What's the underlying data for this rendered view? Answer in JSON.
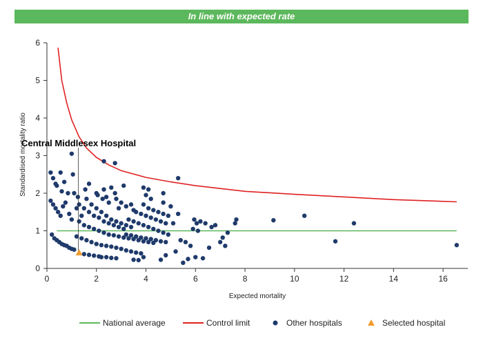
{
  "banner": {
    "text": "In line with expected rate",
    "color": "#5cb85c"
  },
  "legend": {
    "national_average": "National average",
    "control_limit": "Control limit",
    "other_hospitals": "Other hospitals",
    "selected_hospital": "Selected hospital"
  },
  "colors": {
    "national_average": "#5cb85c",
    "control_limit": "#e02020",
    "other_hospitals": "#1f3a6b",
    "selected_hospital": "#f29b30"
  },
  "chart_data": {
    "type": "scatter",
    "xlabel": "Expected mortality",
    "ylabel": "Standardised mortality ratio",
    "xlim": [
      0,
      17
    ],
    "ylim": [
      0,
      6
    ],
    "x_ticks": [
      0,
      2,
      4,
      6,
      8,
      10,
      12,
      14,
      16
    ],
    "y_ticks": [
      0,
      1,
      2,
      3,
      4,
      5,
      6
    ],
    "annotation": {
      "text": "Central Middlesex Hospital",
      "x": 1.3,
      "y": 0.42
    },
    "national_average": 1,
    "control_limit": [
      [
        0.45,
        5.87
      ],
      [
        0.6,
        5.0
      ],
      [
        0.8,
        4.4
      ],
      [
        1.0,
        3.95
      ],
      [
        1.3,
        3.5
      ],
      [
        1.6,
        3.2
      ],
      [
        2.0,
        2.95
      ],
      [
        2.5,
        2.75
      ],
      [
        3.0,
        2.6
      ],
      [
        4.0,
        2.42
      ],
      [
        5.0,
        2.3
      ],
      [
        6.0,
        2.2
      ],
      [
        8.0,
        2.05
      ],
      [
        10.0,
        1.97
      ],
      [
        12.0,
        1.9
      ],
      [
        14.0,
        1.83
      ],
      [
        16.55,
        1.77
      ]
    ],
    "series": [
      {
        "name": "Other hospitals",
        "points": [
          [
            0.15,
            2.55
          ],
          [
            0.25,
            2.4
          ],
          [
            0.35,
            2.25
          ],
          [
            0.55,
            2.55
          ],
          [
            0.7,
            2.3
          ],
          [
            0.85,
            2.0
          ],
          [
            1.0,
            3.05
          ],
          [
            1.05,
            2.5
          ],
          [
            0.6,
            2.05
          ],
          [
            0.4,
            2.2
          ],
          [
            0.15,
            1.8
          ],
          [
            0.25,
            1.7
          ],
          [
            0.35,
            1.6
          ],
          [
            0.45,
            1.5
          ],
          [
            0.55,
            1.4
          ],
          [
            0.65,
            1.65
          ],
          [
            0.9,
            1.45
          ],
          [
            1.0,
            1.3
          ],
          [
            1.2,
            1.6
          ],
          [
            1.4,
            1.4
          ],
          [
            1.6,
            1.85
          ],
          [
            1.8,
            1.7
          ],
          [
            2.0,
            1.6
          ],
          [
            2.2,
            1.5
          ],
          [
            2.4,
            1.4
          ],
          [
            2.6,
            1.3
          ],
          [
            2.8,
            1.25
          ],
          [
            3.0,
            1.2
          ],
          [
            3.2,
            1.15
          ],
          [
            3.4,
            1.1
          ],
          [
            1.3,
            1.7
          ],
          [
            1.5,
            1.6
          ],
          [
            1.7,
            1.5
          ],
          [
            1.9,
            1.4
          ],
          [
            2.1,
            1.35
          ],
          [
            2.3,
            1.25
          ],
          [
            2.5,
            1.2
          ],
          [
            2.7,
            1.15
          ],
          [
            2.9,
            1.1
          ],
          [
            3.1,
            1.05
          ],
          [
            0.2,
            0.9
          ],
          [
            0.3,
            0.8
          ],
          [
            0.4,
            0.75
          ],
          [
            0.5,
            0.7
          ],
          [
            0.6,
            0.65
          ],
          [
            0.7,
            0.62
          ],
          [
            0.8,
            0.6
          ],
          [
            0.9,
            0.55
          ],
          [
            1.0,
            0.52
          ],
          [
            1.1,
            0.5
          ],
          [
            1.2,
            0.85
          ],
          [
            1.4,
            0.8
          ],
          [
            1.6,
            0.75
          ],
          [
            1.8,
            0.7
          ],
          [
            2.0,
            0.65
          ],
          [
            2.2,
            0.62
          ],
          [
            2.4,
            0.6
          ],
          [
            2.6,
            0.58
          ],
          [
            2.8,
            0.55
          ],
          [
            3.0,
            0.52
          ],
          [
            1.3,
            1.25
          ],
          [
            1.5,
            1.15
          ],
          [
            1.7,
            1.1
          ],
          [
            1.9,
            1.05
          ],
          [
            2.1,
            1.0
          ],
          [
            2.3,
            0.95
          ],
          [
            2.5,
            0.9
          ],
          [
            2.7,
            0.88
          ],
          [
            2.9,
            0.85
          ],
          [
            3.1,
            0.82
          ],
          [
            3.3,
            0.8
          ],
          [
            3.5,
            0.78
          ],
          [
            3.7,
            0.75
          ],
          [
            3.9,
            0.72
          ],
          [
            4.1,
            0.7
          ],
          [
            4.3,
            0.68
          ],
          [
            3.2,
            0.48
          ],
          [
            3.4,
            0.45
          ],
          [
            3.6,
            0.42
          ],
          [
            3.8,
            0.4
          ],
          [
            2.2,
            0.3
          ],
          [
            2.4,
            0.3
          ],
          [
            2.6,
            0.28
          ],
          [
            2.8,
            0.27
          ],
          [
            1.5,
            0.38
          ],
          [
            1.7,
            0.36
          ],
          [
            1.9,
            0.34
          ],
          [
            2.1,
            0.32
          ],
          [
            3.3,
            1.3
          ],
          [
            3.5,
            1.25
          ],
          [
            3.7,
            1.2
          ],
          [
            3.9,
            1.15
          ],
          [
            4.1,
            1.1
          ],
          [
            4.3,
            1.05
          ],
          [
            4.5,
            1.0
          ],
          [
            4.7,
            0.95
          ],
          [
            4.9,
            0.9
          ],
          [
            3.2,
            0.9
          ],
          [
            3.4,
            0.88
          ],
          [
            3.6,
            0.85
          ],
          [
            3.8,
            0.82
          ],
          [
            4.0,
            0.8
          ],
          [
            4.2,
            0.78
          ],
          [
            4.4,
            0.75
          ],
          [
            4.6,
            0.72
          ],
          [
            4.8,
            0.7
          ],
          [
            3.6,
            1.5
          ],
          [
            3.8,
            1.45
          ],
          [
            4.0,
            1.4
          ],
          [
            4.2,
            1.35
          ],
          [
            4.4,
            1.3
          ],
          [
            4.6,
            1.25
          ],
          [
            4.8,
            1.2
          ],
          [
            3.4,
            1.7
          ],
          [
            3.0,
            1.75
          ],
          [
            3.5,
            0.23
          ],
          [
            3.7,
            0.22
          ],
          [
            3.9,
            0.3
          ],
          [
            4.6,
            0.23
          ],
          [
            4.8,
            0.35
          ],
          [
            5.2,
            0.45
          ],
          [
            5.5,
            0.15
          ],
          [
            5.7,
            0.25
          ],
          [
            6.0,
            0.3
          ],
          [
            6.3,
            0.27
          ],
          [
            4.1,
            1.6
          ],
          [
            4.3,
            1.55
          ],
          [
            4.5,
            1.5
          ],
          [
            4.7,
            1.45
          ],
          [
            4.9,
            1.4
          ],
          [
            5.3,
            1.45
          ],
          [
            5.1,
            1.2
          ],
          [
            5.4,
            0.75
          ],
          [
            5.6,
            0.7
          ],
          [
            5.8,
            0.6
          ],
          [
            5.9,
            1.05
          ],
          [
            5.95,
            1.3
          ],
          [
            6.05,
            1.2
          ],
          [
            6.1,
            1.0
          ],
          [
            6.2,
            1.25
          ],
          [
            6.4,
            1.2
          ],
          [
            6.55,
            0.55
          ],
          [
            6.65,
            1.1
          ],
          [
            6.8,
            1.15
          ],
          [
            7.0,
            0.7
          ],
          [
            7.1,
            0.82
          ],
          [
            7.2,
            0.6
          ],
          [
            7.3,
            0.95
          ],
          [
            7.6,
            1.2
          ],
          [
            7.65,
            1.3
          ],
          [
            1.55,
            2.1
          ],
          [
            1.7,
            2.25
          ],
          [
            2.0,
            2.0
          ],
          [
            2.05,
            1.95
          ],
          [
            2.4,
            1.9
          ],
          [
            2.5,
            1.75
          ],
          [
            2.8,
            1.85
          ],
          [
            2.9,
            1.6
          ],
          [
            2.25,
            1.85
          ],
          [
            2.3,
            2.1
          ],
          [
            2.75,
            2.0
          ],
          [
            3.2,
            1.65
          ],
          [
            3.5,
            1.55
          ],
          [
            3.9,
            1.7
          ],
          [
            4.1,
            2.1
          ],
          [
            4.0,
            1.95
          ],
          [
            4.2,
            1.85
          ],
          [
            4.7,
            1.75
          ],
          [
            5.0,
            1.65
          ],
          [
            3.9,
            2.15
          ],
          [
            4.7,
            2.0
          ],
          [
            2.6,
            2.15
          ],
          [
            2.3,
            2.85
          ],
          [
            2.75,
            2.8
          ],
          [
            3.1,
            2.2
          ],
          [
            5.3,
            2.4
          ],
          [
            1.1,
            2.0
          ],
          [
            1.25,
            1.9
          ],
          [
            0.75,
            1.75
          ],
          [
            9.15,
            1.28
          ],
          [
            10.4,
            1.4
          ],
          [
            11.65,
            0.72
          ],
          [
            12.4,
            1.2
          ],
          [
            16.55,
            0.62
          ]
        ]
      },
      {
        "name": "Selected hospital",
        "points": [
          [
            1.3,
            0.42
          ]
        ]
      }
    ]
  }
}
